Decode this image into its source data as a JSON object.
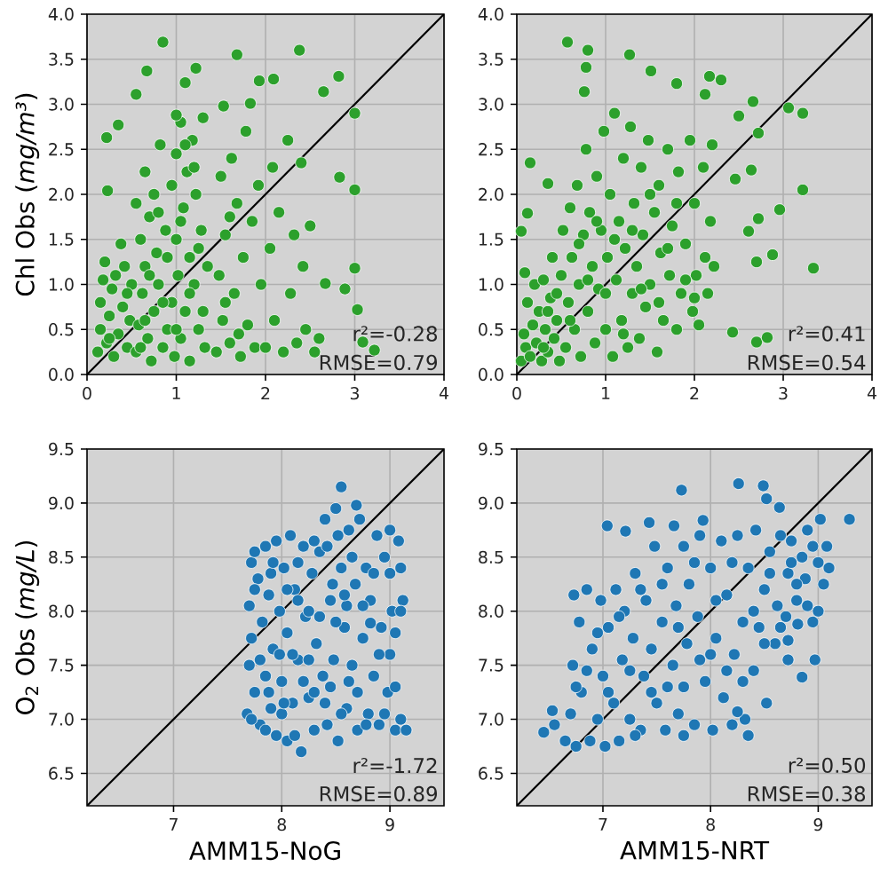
{
  "chart_data": [
    {
      "type": "scatter",
      "ylabel": "Chl Obs (*mg/m³*)",
      "annotations": [
        "r²=-0.28",
        "RMSE=0.79"
      ],
      "xlim": [
        0,
        4
      ],
      "ylim": [
        0,
        4
      ],
      "xticks": [
        0,
        1,
        2,
        3,
        4
      ],
      "yticks": [
        {
          "value": 0,
          "label": "0.0"
        },
        0.5,
        {
          "value": 1,
          "label": "1.0"
        },
        1.5,
        {
          "value": 2,
          "label": "2.0"
        },
        2.5,
        {
          "value": 3,
          "label": "3.0"
        },
        3.5,
        {
          "value": 4,
          "label": "4.0"
        }
      ],
      "grid": true,
      "marker": "circle",
      "series": [
        {
          "color": "#2ca02c",
          "x": [
            0.12,
            0.15,
            0.15,
            0.18,
            0.2,
            0.22,
            0.25,
            0.28,
            0.3,
            0.32,
            0.35,
            0.38,
            0.4,
            0.42,
            0.45,
            0.48,
            0.5,
            0.55,
            0.55,
            0.58,
            0.6,
            0.62,
            0.65,
            0.65,
            0.68,
            0.7,
            0.72,
            0.75,
            0.75,
            0.78,
            0.8,
            0.82,
            0.85,
            0.88,
            0.9,
            0.95,
            0.95,
            0.98,
            1.0,
            1.0,
            1.02,
            1.05,
            1.05,
            1.08,
            1.1,
            1.12,
            1.15,
            1.15,
            1.18,
            1.2,
            1.22,
            1.25,
            1.28,
            1.3,
            1.32,
            1.35,
            1.45,
            1.48,
            1.5,
            1.52,
            1.55,
            1.6,
            1.62,
            1.65,
            1.68,
            1.72,
            1.75,
            1.78,
            1.8,
            1.85,
            1.88,
            1.92,
            1.95,
            2.0,
            2.05,
            2.08,
            2.1,
            2.15,
            2.2,
            2.25,
            2.28,
            2.32,
            2.35,
            2.4,
            2.42,
            2.45,
            2.5,
            2.55,
            2.6,
            0.85,
            0.67,
            0.55,
            0.22,
            0.23,
            0.35,
            1.1,
            1.22,
            1.68,
            1.93,
            2.09,
            2.38,
            2.82,
            2.65,
            3.0,
            3.0,
            3.0,
            2.83,
            2.89,
            2.67,
            3.03,
            3.09,
            3.22,
            1.53,
            1.0,
            1.83,
            0.65,
            0.7,
            0.8,
            0.85,
            0.9,
            1.0,
            1.05,
            1.1,
            1.15,
            1.2,
            1.25,
            1.3,
            0.6,
            0.45,
            1.55,
            1.7,
            1.6,
            0.25
          ],
          "values": [
            0.25,
            0.5,
            0.8,
            1.05,
            1.25,
            0.35,
            0.65,
            0.95,
            0.2,
            1.1,
            0.45,
            1.45,
            0.75,
            1.2,
            0.3,
            0.6,
            1.0,
            0.25,
            1.9,
            0.55,
            1.5,
            0.9,
            2.25,
            1.2,
            0.4,
            1.75,
            0.15,
            2.0,
            0.7,
            1.35,
            1.0,
            2.55,
            0.3,
            1.6,
            0.5,
            2.1,
            0.8,
            0.2,
            1.5,
            2.45,
            1.1,
            0.4,
            2.8,
            1.85,
            0.7,
            2.25,
            1.3,
            0.15,
            2.6,
            1.0,
            2.0,
            0.5,
            1.6,
            2.85,
            0.3,
            1.2,
            0.25,
            1.1,
            2.2,
            0.6,
            1.55,
            0.35,
            2.4,
            0.9,
            1.9,
            0.2,
            1.3,
            2.7,
            0.55,
            1.7,
            0.3,
            2.1,
            1.0,
            0.3,
            1.4,
            2.3,
            0.6,
            1.8,
            0.25,
            2.6,
            0.9,
            1.55,
            0.35,
            2.35,
            1.2,
            0.5,
            1.65,
            0.25,
            0.4,
            3.69,
            3.37,
            3.11,
            2.63,
            2.04,
            2.77,
            3.24,
            3.4,
            3.55,
            3.26,
            3.28,
            3.6,
            3.31,
            3.14,
            2.9,
            2.05,
            1.18,
            2.19,
            0.95,
            1.01,
            0.72,
            0.36,
            0.27,
            2.98,
            2.88,
            3.01,
            0.6,
            1.1,
            1.8,
            0.8,
            1.3,
            0.5,
            1.7,
            2.55,
            0.9,
            2.3,
            1.4,
            0.7,
            0.3,
            0.9,
            0.8,
            0.45,
            1.75,
            0.4
          ]
        },
        {
          "type": "line",
          "color": "#000000",
          "marker": "none",
          "x": [
            0,
            4
          ],
          "values": [
            0,
            4
          ]
        }
      ]
    },
    {
      "type": "scatter",
      "annotations": [
        "r²=0.41",
        "RMSE=0.54"
      ],
      "xlim": [
        0,
        4
      ],
      "ylim": [
        0,
        4
      ],
      "xticks": [
        0,
        1,
        2,
        3,
        4
      ],
      "yticks": [
        {
          "value": 0,
          "label": "0.0"
        },
        0.5,
        {
          "value": 1,
          "label": "1.0"
        },
        1.5,
        {
          "value": 2,
          "label": "2.0"
        },
        2.5,
        {
          "value": 3,
          "label": "3.0"
        },
        3.5,
        {
          "value": 4,
          "label": "4.0"
        }
      ],
      "grid": true,
      "marker": "circle",
      "series": [
        {
          "color": "#2ca02c",
          "x": [
            0.05,
            0.08,
            0.1,
            0.12,
            0.15,
            0.18,
            0.2,
            0.22,
            0.25,
            0.28,
            0.3,
            0.32,
            0.35,
            0.38,
            0.4,
            0.42,
            0.45,
            0.48,
            0.5,
            0.52,
            0.55,
            0.58,
            0.6,
            0.62,
            0.65,
            0.68,
            0.7,
            0.72,
            0.75,
            0.78,
            0.8,
            0.82,
            0.85,
            0.88,
            0.9,
            0.92,
            0.95,
            0.98,
            1.0,
            1.02,
            1.05,
            1.08,
            1.1,
            1.12,
            1.15,
            1.18,
            1.2,
            1.22,
            1.25,
            1.28,
            1.3,
            1.32,
            1.35,
            1.38,
            1.4,
            1.42,
            1.45,
            1.48,
            1.5,
            1.55,
            1.58,
            1.6,
            1.62,
            1.65,
            1.7,
            1.72,
            1.75,
            1.8,
            1.82,
            1.85,
            1.9,
            1.95,
            1.98,
            2.0,
            2.02,
            2.05,
            2.1,
            2.12,
            2.15,
            2.18,
            2.2,
            2.22,
            0.57,
            0.8,
            0.78,
            0.76,
            1.27,
            1.51,
            1.8,
            2.17,
            2.3,
            2.12,
            2.66,
            3.06,
            3.22,
            2.5,
            3.22,
            3.34,
            2.96,
            2.72,
            2.61,
            2.7,
            2.88,
            2.72,
            2.64,
            2.46,
            2.7,
            2.82,
            2.43,
            0.05,
            0.15,
            0.12,
            0.09,
            0.35,
            0.45,
            0.6,
            0.7,
            0.8,
            0.9,
            1.0,
            1.1,
            1.2,
            1.3,
            1.4,
            1.5,
            1.6,
            1.7,
            1.8,
            1.9,
            2.0,
            0.3,
            0.35
          ],
          "values": [
            0.15,
            0.45,
            0.3,
            0.8,
            0.2,
            0.55,
            1.0,
            0.35,
            0.7,
            0.15,
            1.05,
            0.5,
            0.25,
            0.85,
            1.3,
            0.4,
            0.6,
            0.15,
            1.1,
            1.6,
            0.3,
            0.8,
            1.85,
            1.3,
            0.5,
            2.1,
            1.0,
            0.2,
            1.55,
            2.5,
            0.7,
            1.8,
            1.2,
            0.35,
            2.2,
            0.95,
            1.6,
            2.7,
            0.5,
            1.3,
            2.0,
            0.2,
            2.9,
            1.05,
            1.7,
            0.6,
            2.4,
            1.4,
            0.3,
            2.75,
            0.9,
            1.9,
            1.2,
            0.4,
            2.3,
            1.55,
            0.75,
            2.6,
            1.0,
            1.8,
            0.25,
            2.1,
            1.35,
            0.6,
            2.5,
            1.1,
            1.65,
            0.5,
            2.25,
            0.9,
            1.45,
            2.6,
            0.7,
            1.9,
            1.1,
            0.55,
            2.3,
            1.3,
            0.9,
            1.7,
            2.55,
            1.2,
            3.69,
            3.6,
            3.41,
            3.14,
            3.55,
            3.37,
            3.23,
            3.31,
            3.27,
            3.11,
            3.03,
            2.96,
            2.9,
            2.87,
            2.05,
            1.18,
            1.83,
            1.73,
            1.59,
            1.25,
            1.33,
            2.68,
            2.27,
            2.17,
            0.36,
            0.41,
            0.47,
            1.59,
            2.35,
            1.79,
            1.13,
            2.12,
            0.9,
            0.6,
            1.45,
            1.05,
            1.7,
            0.9,
            1.5,
            0.45,
            1.6,
            0.95,
            2.0,
            0.8,
            1.4,
            1.9,
            1.05,
            0.85,
            0.3,
            0.7
          ]
        },
        {
          "type": "line",
          "color": "#000000",
          "marker": "none",
          "x": [
            0,
            4
          ],
          "values": [
            0,
            4
          ]
        }
      ]
    },
    {
      "type": "scatter",
      "xlabel": "AMM15-NoG",
      "ylabel": "O$_{2}$ Obs (*mg/L*)",
      "annotations": [
        "r²=-1.72",
        "RMSE=0.89"
      ],
      "xlim": [
        6.2,
        9.5
      ],
      "ylim": [
        6.2,
        9.5
      ],
      "xticks": [
        7,
        8,
        9
      ],
      "yticks": [
        6.5,
        {
          "value": 7,
          "label": "7.0"
        },
        7.5,
        {
          "value": 8,
          "label": "8.0"
        },
        8.5,
        {
          "value": 9,
          "label": "9.0"
        },
        9.5
      ],
      "grid": true,
      "marker": "circle",
      "series": [
        {
          "color": "#1f77b4",
          "x": [
            7.68,
            7.7,
            7.7,
            7.72,
            7.72,
            7.75,
            7.78,
            7.8,
            7.82,
            7.85,
            7.85,
            7.88,
            7.9,
            7.92,
            7.95,
            7.95,
            7.98,
            8.0,
            8.02,
            8.05,
            8.05,
            8.08,
            8.1,
            8.12,
            8.15,
            8.18,
            8.2,
            8.22,
            8.25,
            8.28,
            8.3,
            8.32,
            8.35,
            8.38,
            8.4,
            8.42,
            8.45,
            8.48,
            8.5,
            8.52,
            8.55,
            8.55,
            8.58,
            8.6,
            8.62,
            8.65,
            8.68,
            8.7,
            8.72,
            8.75,
            8.78,
            8.8,
            8.82,
            8.85,
            8.88,
            8.9,
            8.92,
            8.95,
            8.98,
            9.0,
            9.0,
            9.02,
            9.05,
            9.05,
            9.08,
            9.1,
            9.12,
            9.15,
            8.69,
            8.82,
            9.1,
            8.3,
            8.47,
            7.75,
            8.15,
            8.0,
            8.6,
            8.25,
            7.9,
            7.72,
            7.75,
            7.8,
            7.85,
            7.88,
            7.92,
            7.98,
            8.02,
            8.05,
            8.1,
            8.12,
            8.15,
            8.2,
            8.25,
            8.3,
            8.35,
            8.4,
            8.42,
            8.45,
            8.5,
            8.52,
            8.55,
            8.58,
            8.62,
            8.65,
            8.7,
            8.75,
            8.78,
            8.85,
            8.9,
            8.95,
            9.0,
            9.05,
            9.1
          ],
          "values": [
            7.05,
            7.5,
            8.05,
            8.45,
            7.75,
            7.25,
            8.3,
            6.95,
            7.9,
            8.6,
            7.4,
            8.15,
            7.1,
            7.65,
            8.65,
            6.85,
            8.0,
            7.35,
            8.4,
            6.8,
            7.8,
            8.7,
            7.15,
            8.2,
            7.55,
            6.7,
            8.6,
            7.95,
            7.2,
            8.35,
            6.9,
            7.7,
            8.55,
            7.4,
            8.85,
            6.95,
            8.1,
            7.55,
            8.95,
            6.8,
            9.15,
            8.4,
            7.85,
            7.1,
            8.75,
            7.5,
            8.25,
            6.9,
            8.85,
            7.75,
            8.4,
            7.05,
            8.1,
            7.4,
            8.7,
            6.95,
            7.85,
            8.5,
            7.25,
            8.75,
            7.6,
            8.0,
            6.9,
            7.8,
            8.65,
            7.0,
            8.1,
            6.9,
            8.98,
            7.89,
            8.0,
            8.65,
            8.25,
            8.55,
            8.45,
            7.05,
            8.05,
            7.55,
            8.35,
            7.0,
            8.2,
            7.55,
            6.9,
            7.25,
            8.45,
            7.6,
            7.15,
            8.2,
            7.6,
            6.85,
            8.1,
            7.35,
            8.0,
            7.25,
            7.95,
            7.15,
            8.6,
            7.3,
            7.9,
            8.7,
            7.05,
            8.15,
            7.35,
            8.5,
            7.25,
            8.05,
            6.95,
            8.35,
            7.6,
            7.05,
            8.35,
            7.3,
            8.4
          ]
        },
        {
          "type": "line",
          "color": "#000000",
          "marker": "none",
          "x": [
            6.2,
            9.5
          ],
          "values": [
            6.2,
            9.5
          ]
        }
      ]
    },
    {
      "type": "scatter",
      "xlabel": "AMM15-NRT",
      "annotations": [
        "r²=0.50",
        "RMSE=0.38"
      ],
      "xlim": [
        6.2,
        9.5
      ],
      "ylim": [
        6.2,
        9.5
      ],
      "xticks": [
        7,
        8,
        9
      ],
      "yticks": [
        6.5,
        {
          "value": 7,
          "label": "7.0"
        },
        7.5,
        {
          "value": 8,
          "label": "8.0"
        },
        8.5,
        {
          "value": 9,
          "label": "9.0"
        },
        9.5
      ],
      "grid": true,
      "marker": "circle",
      "series": [
        {
          "color": "#1f77b4",
          "x": [
            6.45,
            6.55,
            6.65,
            6.7,
            6.72,
            6.75,
            6.78,
            6.8,
            6.85,
            6.88,
            6.9,
            6.95,
            6.98,
            7.0,
            7.02,
            7.05,
            7.1,
            7.12,
            7.15,
            7.18,
            7.2,
            7.25,
            7.28,
            7.3,
            7.35,
            7.38,
            7.4,
            7.45,
            7.48,
            7.5,
            7.55,
            7.58,
            7.6,
            7.65,
            7.68,
            7.7,
            7.75,
            7.78,
            7.8,
            7.85,
            7.88,
            7.9,
            7.95,
            8.0,
            8.02,
            8.05,
            8.1,
            8.12,
            8.15,
            8.2,
            8.22,
            8.25,
            8.3,
            8.32,
            8.35,
            8.4,
            8.42,
            8.45,
            8.5,
            8.52,
            8.55,
            8.6,
            8.62,
            8.65,
            8.7,
            8.72,
            8.75,
            8.8,
            8.85,
            8.88,
            8.9,
            8.95,
            8.95,
            9.0,
            9.02,
            9.05,
            9.08,
            9.1,
            9.0,
            8.9,
            7.73,
            8.26,
            8.49,
            8.52,
            8.64,
            9.29,
            7.04,
            7.21,
            7.43,
            7.66,
            7.93,
            8.72,
            8.81,
            8.97,
            8.85,
            8.72,
            6.73,
            6.53,
            7.75,
            8.35,
            8.25,
            6.75,
            6.85,
            6.95,
            7.05,
            7.15,
            7.25,
            7.3,
            7.35,
            7.45,
            7.55,
            7.6,
            7.7,
            7.75,
            7.85,
            7.9,
            8.0,
            8.05,
            8.15,
            8.2,
            8.3,
            8.4,
            8.5,
            8.55,
            8.65,
            8.75,
            8.8
          ],
          "values": [
            6.88,
            6.95,
            6.8,
            7.05,
            7.5,
            6.75,
            7.9,
            7.25,
            8.2,
            6.8,
            7.65,
            7.0,
            8.1,
            7.4,
            6.75,
            7.85,
            7.15,
            8.2,
            6.8,
            7.55,
            8.0,
            7.0,
            7.75,
            8.35,
            6.9,
            7.4,
            8.1,
            7.65,
            8.6,
            7.15,
            7.9,
            6.9,
            8.4,
            7.5,
            8.05,
            7.05,
            8.6,
            7.7,
            8.25,
            6.95,
            7.95,
            8.7,
            7.35,
            8.4,
            6.9,
            7.75,
            8.65,
            7.2,
            8.15,
            6.95,
            7.6,
            8.7,
            7.9,
            7.0,
            8.4,
            7.45,
            8.75,
            7.85,
            8.2,
            7.15,
            8.55,
            7.7,
            8.05,
            8.7,
            7.95,
            8.35,
            8.65,
            8.1,
            8.5,
            8.3,
            8.75,
            7.9,
            8.6,
            8.45,
            8.85,
            8.25,
            8.6,
            8.4,
            8.0,
            8.05,
            9.12,
            9.18,
            9.16,
            9.04,
            8.96,
            8.85,
            8.79,
            8.74,
            8.82,
            8.79,
            8.84,
            7.73,
            7.88,
            7.55,
            7.39,
            7.55,
            8.15,
            7.08,
            6.85,
            6.85,
            7.07,
            7.3,
            7.45,
            7.8,
            7.25,
            7.95,
            7.45,
            6.85,
            8.2,
            7.25,
            8.25,
            7.3,
            7.85,
            7.3,
            8.45,
            7.55,
            7.6,
            8.1,
            7.45,
            8.45,
            7.35,
            8.0,
            7.7,
            8.35,
            7.85,
            8.45,
            8.25
          ]
        },
        {
          "type": "line",
          "color": "#000000",
          "marker": "none",
          "x": [
            6.2,
            9.5
          ],
          "values": [
            6.2,
            9.5
          ]
        }
      ]
    }
  ]
}
